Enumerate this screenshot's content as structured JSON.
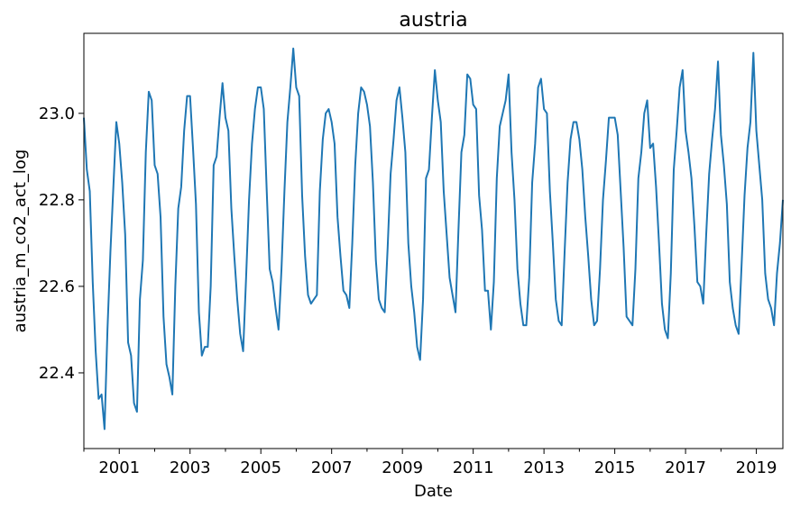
{
  "chart_data": {
    "type": "line",
    "title": "austria",
    "xlabel": "Date",
    "ylabel": "austria_m_co2_act_log",
    "x_start": "2000-01",
    "x_end": "2019-10",
    "frequency": "monthly",
    "xlim": [
      2000.0,
      2019.75
    ],
    "ylim": [
      22.225,
      23.185
    ],
    "x_ticks": [
      {
        "value": 2001,
        "label": "2001"
      },
      {
        "value": 2003,
        "label": "2003"
      },
      {
        "value": 2005,
        "label": "2005"
      },
      {
        "value": 2007,
        "label": "2007"
      },
      {
        "value": 2009,
        "label": "2009"
      },
      {
        "value": 2011,
        "label": "2011"
      },
      {
        "value": 2013,
        "label": "2013"
      },
      {
        "value": 2015,
        "label": "2015"
      },
      {
        "value": 2017,
        "label": "2017"
      },
      {
        "value": 2019,
        "label": "2019"
      }
    ],
    "y_ticks": [
      {
        "value": 22.4,
        "label": "22.4"
      },
      {
        "value": 22.6,
        "label": "22.6"
      },
      {
        "value": 22.8,
        "label": "22.8"
      },
      {
        "value": 23.0,
        "label": "23.0"
      }
    ],
    "grid": false,
    "series": [
      {
        "color": "#1f77b4",
        "values": [
          22.99,
          22.87,
          22.82,
          22.61,
          22.45,
          22.34,
          22.35,
          22.27,
          22.5,
          22.68,
          22.83,
          22.98,
          22.93,
          22.84,
          22.72,
          22.47,
          22.44,
          22.33,
          22.31,
          22.57,
          22.66,
          22.91,
          23.05,
          23.03,
          22.88,
          22.86,
          22.76,
          22.53,
          22.42,
          22.39,
          22.35,
          22.6,
          22.78,
          22.83,
          22.96,
          23.04,
          23.04,
          22.92,
          22.79,
          22.54,
          22.44,
          22.46,
          22.46,
          22.6,
          22.88,
          22.9,
          22.99,
          23.07,
          22.99,
          22.96,
          22.78,
          22.67,
          22.57,
          22.49,
          22.45,
          22.62,
          22.8,
          22.93,
          23.01,
          23.06,
          23.06,
          23.01,
          22.82,
          22.64,
          22.61,
          22.55,
          22.5,
          22.64,
          22.82,
          22.98,
          23.06,
          23.15,
          23.06,
          23.04,
          22.81,
          22.67,
          22.58,
          22.56,
          22.57,
          22.58,
          22.82,
          22.94,
          23.0,
          23.01,
          22.98,
          22.93,
          22.76,
          22.67,
          22.59,
          22.58,
          22.55,
          22.7,
          22.88,
          23.0,
          23.06,
          23.05,
          23.02,
          22.97,
          22.84,
          22.66,
          22.57,
          22.55,
          22.54,
          22.69,
          22.86,
          22.94,
          23.03,
          23.06,
          22.99,
          22.91,
          22.7,
          22.6,
          22.54,
          22.46,
          22.43,
          22.57,
          22.85,
          22.87,
          22.99,
          23.1,
          23.03,
          22.98,
          22.82,
          22.72,
          22.62,
          22.58,
          22.54,
          22.73,
          22.91,
          22.95,
          23.09,
          23.08,
          23.02,
          23.01,
          22.81,
          22.73,
          22.59,
          22.59,
          22.5,
          22.61,
          22.85,
          22.97,
          23.0,
          23.03,
          23.09,
          22.91,
          22.8,
          22.64,
          22.56,
          22.51,
          22.51,
          22.62,
          22.84,
          22.93,
          23.06,
          23.08,
          23.01,
          23.0,
          22.82,
          22.7,
          22.57,
          22.52,
          22.51,
          22.68,
          22.84,
          22.94,
          22.98,
          22.98,
          22.94,
          22.87,
          22.76,
          22.67,
          22.57,
          22.51,
          22.52,
          22.64,
          22.8,
          22.89,
          22.99,
          22.99,
          22.99,
          22.95,
          22.82,
          22.69,
          22.53,
          22.52,
          22.51,
          22.64,
          22.85,
          22.91,
          23.0,
          23.03,
          22.92,
          22.93,
          22.83,
          22.7,
          22.56,
          22.5,
          22.48,
          22.63,
          22.87,
          22.96,
          23.06,
          23.1,
          22.96,
          22.91,
          22.85,
          22.74,
          22.61,
          22.6,
          22.56,
          22.72,
          22.86,
          22.94,
          23.01,
          23.12,
          22.95,
          22.88,
          22.79,
          22.61,
          22.55,
          22.51,
          22.49,
          22.65,
          22.81,
          22.92,
          22.98,
          23.14,
          22.96,
          22.88,
          22.8,
          22.63,
          22.57,
          22.55,
          22.51,
          22.63,
          22.7,
          22.8
        ]
      }
    ]
  }
}
